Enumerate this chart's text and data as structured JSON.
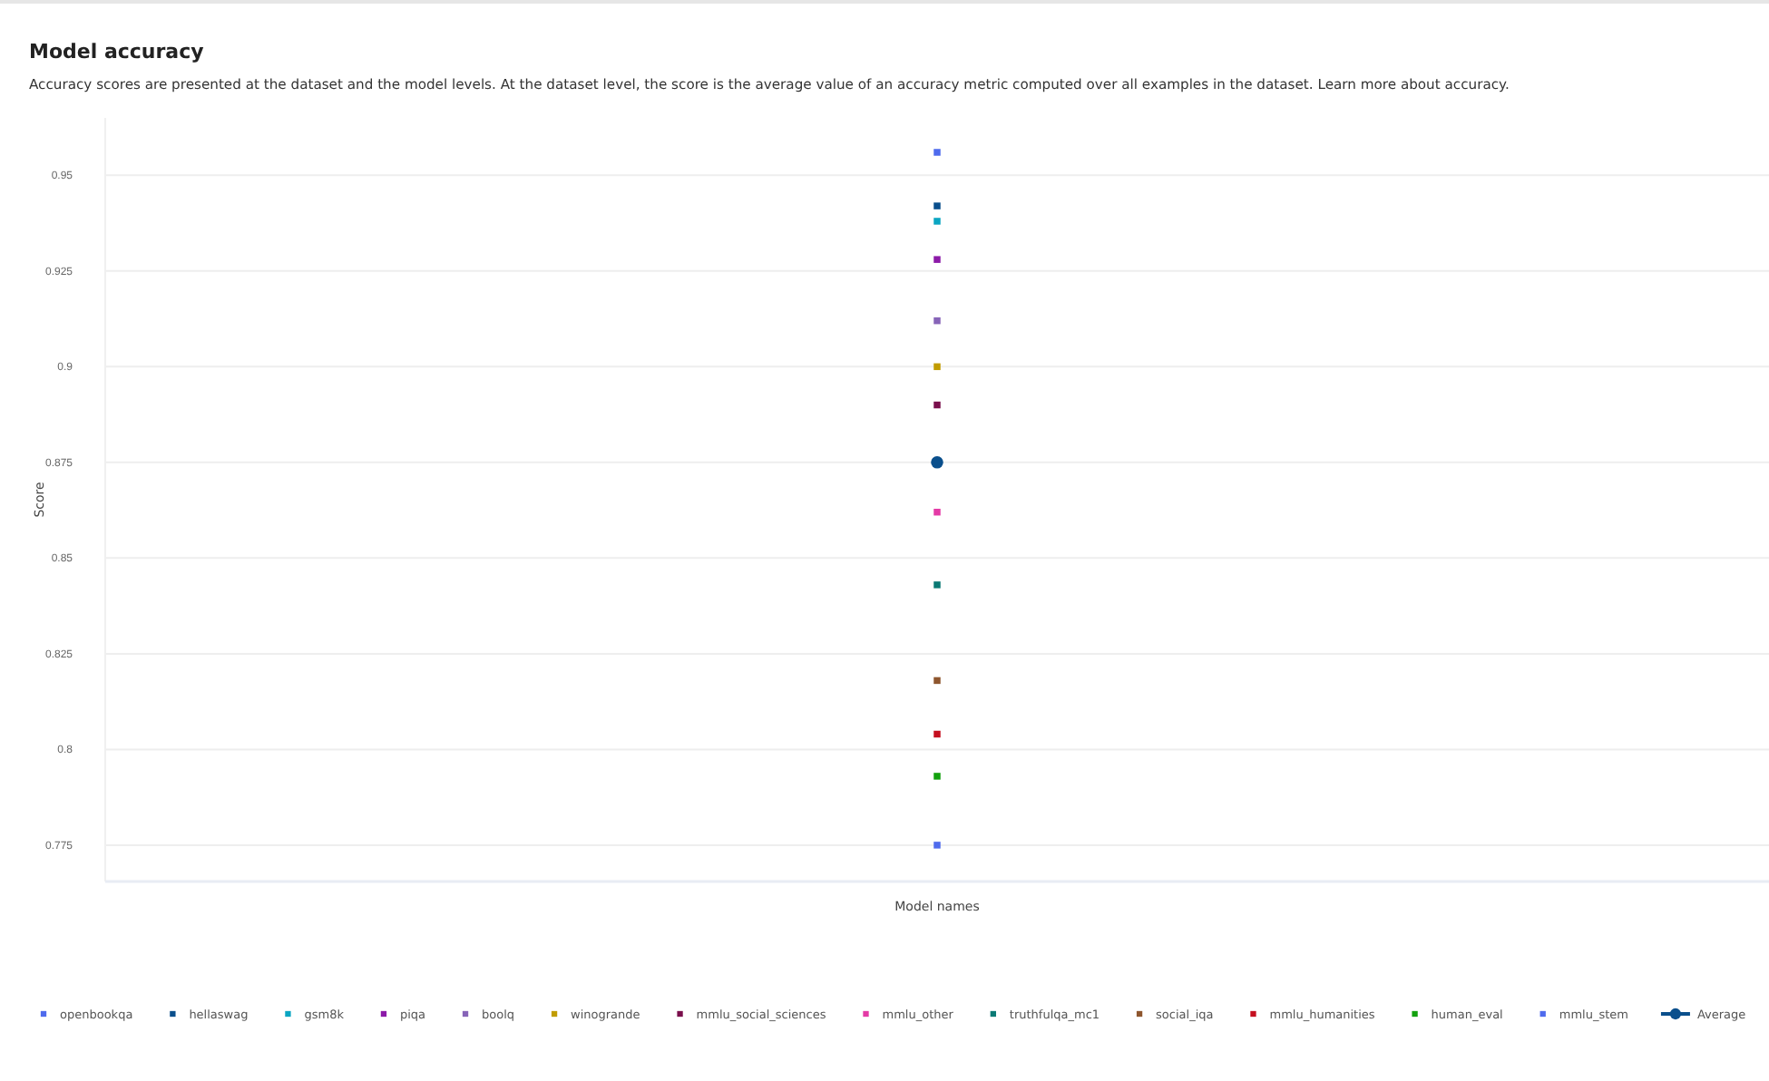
{
  "chart_data": {
    "type": "scatter",
    "title": "Model accuracy",
    "subtitle": "Accuracy scores are presented at the dataset and the model levels. At the dataset level, the score is the average value of an accuracy metric computed over all examples in the dataset. Learn more about accuracy.",
    "xlabel": "Model names",
    "ylabel": "Score",
    "categories": [
      null
    ],
    "marker": "square",
    "grid": "y",
    "legend": "bottom",
    "ylim": [
      0.7655,
      0.965
    ],
    "yticks": [
      0.775,
      0.8,
      0.825,
      0.85,
      0.875,
      0.9,
      0.925,
      0.95
    ],
    "series": [
      {
        "name": "openbookqa",
        "color": "#4f6bed",
        "values": [
          0.956
        ]
      },
      {
        "name": "hellaswag",
        "color": "#0a4f8c",
        "values": [
          0.942
        ]
      },
      {
        "name": "gsm8k",
        "color": "#0aa5c2",
        "values": [
          0.938
        ]
      },
      {
        "name": "piqa",
        "color": "#8c1aa8",
        "values": [
          0.928
        ]
      },
      {
        "name": "boolq",
        "color": "#8764b8",
        "values": [
          0.912
        ]
      },
      {
        "name": "winogrande",
        "color": "#c19c00",
        "values": [
          0.9
        ]
      },
      {
        "name": "mmlu_social_sciences",
        "color": "#7a0f4c",
        "values": [
          0.89
        ]
      },
      {
        "name": "mmlu_other",
        "color": "#e43ba6",
        "values": [
          0.862
        ]
      },
      {
        "name": "truthfulqa_mc1",
        "color": "#0b7a75",
        "values": [
          0.843
        ]
      },
      {
        "name": "social_iqa",
        "color": "#8e562e",
        "values": [
          0.818
        ]
      },
      {
        "name": "mmlu_humanities",
        "color": "#c50f1f",
        "values": [
          0.804
        ]
      },
      {
        "name": "human_eval",
        "color": "#13a10e",
        "values": [
          0.793
        ]
      },
      {
        "name": "mmlu_stem",
        "color": "#4f6bed",
        "values": [
          0.775
        ]
      },
      {
        "name": "Average",
        "type": "line",
        "marker": "circle",
        "color": "#0a4f8c",
        "values": [
          0.875
        ]
      }
    ]
  }
}
